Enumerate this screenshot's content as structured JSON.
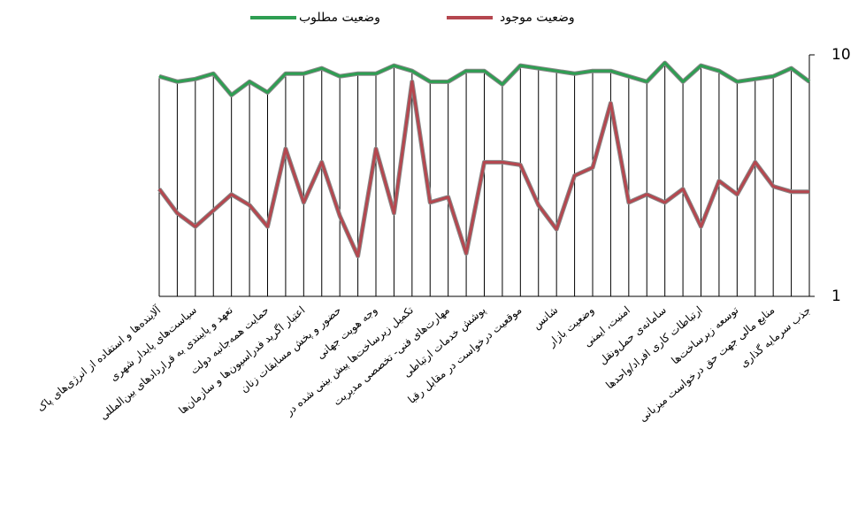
{
  "chart_data": {
    "type": "line",
    "categories": [
      "آلاینده‌ها و استفاده از انرژی‌های پاک",
      null,
      "سیاست‌های پایدار شهری",
      null,
      "تعهد و پایبندی به قراردادهای بین‌المللی",
      null,
      "حمایت همه‌جانبه دولت",
      null,
      "اعتبار اگرید فدراسیون‌ها و سازمان‌ها",
      null,
      "حضور و پخش مسابقات زنان",
      null,
      "وجه هویت جهانی",
      null,
      "تکمیل زیرساخت‌ها پیش بینی شده در",
      null,
      "مهارت‌های فنی- تخصصی مدیریت",
      null,
      "پوشش خدمات ارتباطی",
      null,
      "موقعیت درخواست در مقابل رقبا",
      null,
      "شانس",
      null,
      "وضعیت بازار",
      null,
      "امنیت، ایمنی",
      null,
      "سامانه‌ی حمل‌ونقل",
      null,
      "ارتباطات کاری افراد/واحدها",
      null,
      "توسعه زیرساخت‌ها",
      null,
      "منابع مالی جهت حق درخواست میزبانی",
      null,
      "جذب سرمایه گذاری"
    ],
    "series": [
      {
        "name": "وضعیت مطلوب",
        "color": "#2e9e52",
        "values": [
          9.2,
          9.0,
          9.1,
          9.3,
          8.5,
          9.0,
          8.6,
          9.3,
          9.3,
          9.5,
          9.2,
          9.3,
          9.3,
          9.6,
          9.4,
          9.0,
          9.0,
          9.4,
          9.4,
          8.9,
          9.6,
          9.5,
          9.4,
          9.3,
          9.4,
          9.4,
          9.2,
          9.0,
          9.7,
          9.0,
          9.6,
          9.4,
          9.0,
          9.1,
          9.2,
          9.5,
          9.0
        ]
      },
      {
        "name": "وضعیت موجود",
        "color": "#b5474f",
        "values": [
          5.0,
          4.1,
          3.6,
          4.2,
          4.8,
          4.4,
          3.6,
          6.5,
          4.5,
          6.0,
          4.0,
          2.5,
          6.5,
          4.1,
          9.0,
          4.5,
          4.7,
          2.6,
          6.0,
          6.0,
          5.9,
          4.4,
          3.5,
          5.5,
          5.8,
          8.2,
          4.5,
          4.8,
          4.5,
          5.0,
          3.6,
          5.3,
          4.8,
          6.0,
          5.1,
          4.9,
          4.9
        ]
      }
    ],
    "ylim": [
      1,
      10
    ],
    "yticks": [
      1,
      10
    ]
  }
}
